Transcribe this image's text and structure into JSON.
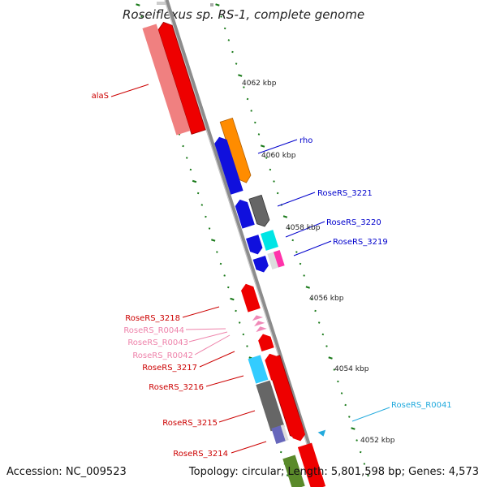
{
  "title": "Roseiflexus sp. RS-1, complete genome",
  "footer": {
    "accession": "Accession: NC_009523",
    "topology": "Topology: circular; Length: 5,801,598 bp; Genes: 4,573"
  },
  "colors": {
    "backbone": "#8c8c8c",
    "tick": "#1a7a1a",
    "red_gene": "#ee0000",
    "pink_gene": "#f08080",
    "blue_gene": "#1010dd",
    "orange_gene": "#ff8c00",
    "gray_gene": "#666666",
    "cyan_gene": "#33ccff",
    "aqua_gene": "#00e5e5",
    "magenta_gene": "#ff33aa",
    "violet_gene": "#6666bb",
    "olive_gene": "#5a8a2a",
    "label_red": "#cc0000",
    "label_pink": "#ee82aa",
    "label_blue": "#0000cc",
    "label_cyan": "#22aadd"
  },
  "position_labels": [
    "4062 kbp",
    "4060 kbp",
    "4058 kbp",
    "4056 kbp",
    "4054 kbp",
    "4052 kbp"
  ],
  "gene_labels": [
    {
      "text": "alaS",
      "color": "#cc0000"
    },
    {
      "text": "rho",
      "color": "#0000cc"
    },
    {
      "text": "RoseRS_3221",
      "color": "#0000cc"
    },
    {
      "text": "RoseRS_3220",
      "color": "#0000cc"
    },
    {
      "text": "RoseRS_3219",
      "color": "#0000cc"
    },
    {
      "text": "RoseRS_3218",
      "color": "#cc0000"
    },
    {
      "text": "RoseRS_R0044",
      "color": "#ee82aa"
    },
    {
      "text": "RoseRS_R0043",
      "color": "#ee82aa"
    },
    {
      "text": "RoseRS_R0042",
      "color": "#ee82aa"
    },
    {
      "text": "RoseRS_3217",
      "color": "#cc0000"
    },
    {
      "text": "RoseRS_3216",
      "color": "#cc0000"
    },
    {
      "text": "RoseRS_3215",
      "color": "#cc0000"
    },
    {
      "text": "RoseRS_3214",
      "color": "#cc0000"
    },
    {
      "text": "RoseRS_R0041",
      "color": "#22aadd"
    }
  ]
}
